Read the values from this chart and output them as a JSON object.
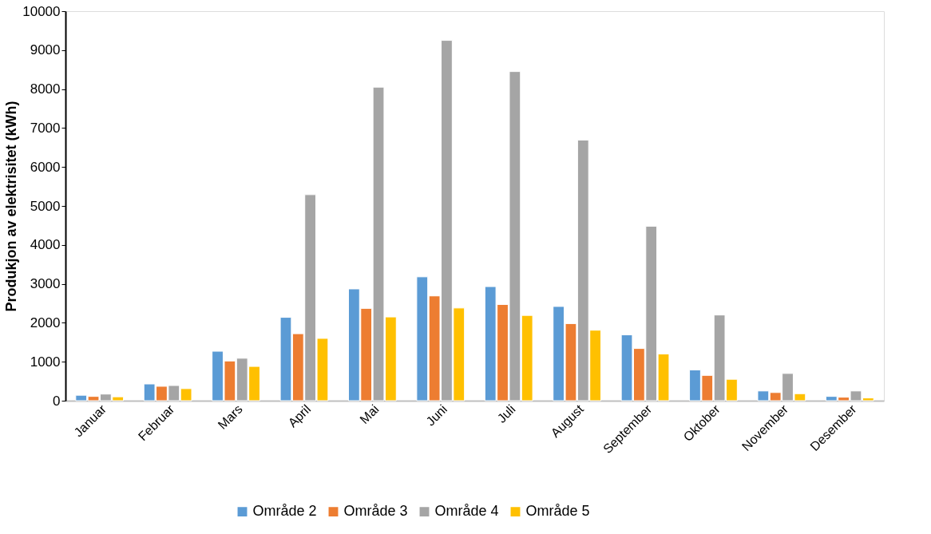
{
  "chart_data": {
    "type": "bar",
    "ylabel": "Produkjon av elektrisitet (kWh)",
    "categories": [
      "Januar",
      "Februar",
      "Mars",
      "April",
      "Mai",
      "Juni",
      "Juli",
      "August",
      "September",
      "Oktober",
      "November",
      "Desember"
    ],
    "series": [
      {
        "name": "Område 2",
        "color": "#5b9bd5",
        "values": [
          140,
          430,
          1270,
          2140,
          2870,
          3180,
          2930,
          2420,
          1690,
          790,
          250,
          110
        ]
      },
      {
        "name": "Område 3",
        "color": "#ed7d31",
        "values": [
          110,
          370,
          1020,
          1720,
          2370,
          2690,
          2470,
          1980,
          1340,
          650,
          210,
          90
        ]
      },
      {
        "name": "Område 4",
        "color": "#a5a5a5",
        "values": [
          170,
          390,
          1090,
          5290,
          8050,
          9250,
          8450,
          6690,
          4480,
          2200,
          700,
          250
        ]
      },
      {
        "name": "Område 5",
        "color": "#ffc000",
        "values": [
          100,
          310,
          880,
          1600,
          2150,
          2380,
          2190,
          1810,
          1200,
          550,
          180,
          70
        ]
      }
    ],
    "ylim": [
      0,
      10000
    ],
    "yticks": [
      0,
      1000,
      2000,
      3000,
      4000,
      5000,
      6000,
      7000,
      8000,
      9000,
      10000
    ],
    "grid": false,
    "legend": "bottom"
  }
}
